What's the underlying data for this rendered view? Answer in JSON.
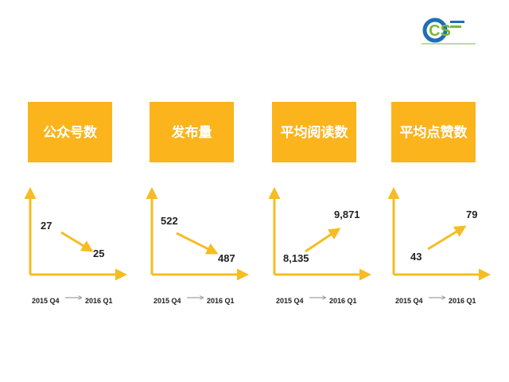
{
  "logo": "CS",
  "period": {
    "from": "2015 Q4",
    "to": "2016 Q1"
  },
  "panels": [
    {
      "title": "公众号数",
      "start": "27",
      "end": "25"
    },
    {
      "title": "发布量",
      "start": "522",
      "end": "487"
    },
    {
      "title": "平均阅读数",
      "start": "8,135",
      "end": "9,871"
    },
    {
      "title": "平均点赞数",
      "start": "43",
      "end": "79"
    }
  ]
}
